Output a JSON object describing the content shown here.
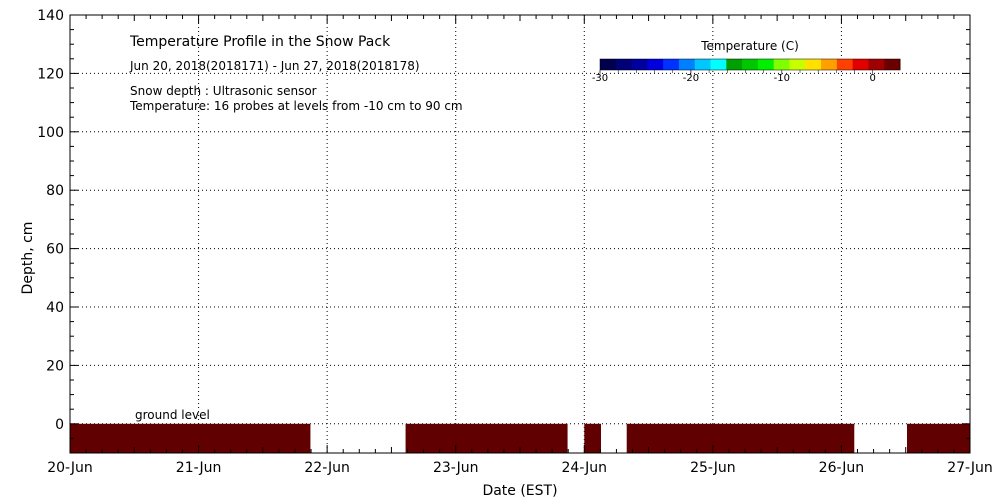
{
  "chart_data": {
    "type": "heatmap",
    "title": "Temperature Profile in the Snow Pack",
    "subtitle": "Jun 20, 2018(2018171) - Jun 27, 2018(2018178)",
    "notes": [
      "Snow depth : Ultrasonic sensor",
      "Temperature: 16 probes at levels from -10 cm to 90 cm"
    ],
    "xlabel": "Date (EST)",
    "ylabel": "Depth, cm",
    "x_ticks": [
      "20-Jun",
      "21-Jun",
      "22-Jun",
      "23-Jun",
      "24-Jun",
      "25-Jun",
      "26-Jun",
      "27-Jun"
    ],
    "xlim": [
      0,
      7
    ],
    "ylim": [
      -10,
      140
    ],
    "y_ticks": [
      0,
      20,
      40,
      60,
      80,
      100,
      120,
      140
    ],
    "grid": true,
    "ground_label": "ground level",
    "ground_level": 0,
    "colorbar": {
      "title": "Temperature (C)",
      "range": [
        -30,
        3
      ],
      "ticks": [
        -30,
        -20,
        -10,
        0
      ],
      "tick_labels": [
        "-30",
        "-20",
        "-10",
        "0"
      ],
      "colors": [
        "#00004f",
        "#000077",
        "#00009e",
        "#0000dd",
        "#0032ff",
        "#0080ff",
        "#00c8ff",
        "#00ffff",
        "#00a000",
        "#00c800",
        "#00f000",
        "#80ff00",
        "#c8ff00",
        "#ffe000",
        "#ffa000",
        "#ff4000",
        "#e00000",
        "#a00000",
        "#6b0000"
      ]
    },
    "temperature_color": "#600000",
    "segments": [
      {
        "x_start": 0.0,
        "x_end": 1.87,
        "y_top": 0,
        "y_bottom": -10,
        "temperature_max_color": true
      },
      {
        "x_start": 2.61,
        "x_end": 3.87,
        "y_top": 0,
        "y_bottom": -10,
        "temperature_max_color": true
      },
      {
        "x_start": 4.0,
        "x_end": 4.13,
        "y_top": 0,
        "y_bottom": -10,
        "temperature_max_color": true
      },
      {
        "x_start": 4.33,
        "x_end": 6.1,
        "y_top": 0,
        "y_bottom": -10,
        "temperature_max_color": true
      },
      {
        "x_start": 6.51,
        "x_end": 7.0,
        "y_top": 0,
        "y_bottom": -10,
        "temperature_max_color": true
      }
    ]
  }
}
